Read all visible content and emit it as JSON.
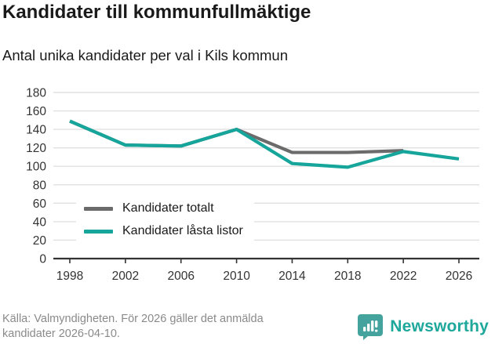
{
  "header": {
    "title": "Kandidater till kommunfullmäktige",
    "subtitle": "Antal unika kandidater per val i Kils kommun"
  },
  "chart_data": {
    "type": "line",
    "categories": [
      "1998",
      "2002",
      "2006",
      "2010",
      "2014",
      "2018",
      "2022",
      "2026"
    ],
    "series": [
      {
        "name": "Kandidater totalt",
        "color": "#6b6b6b",
        "values": [
          149,
          123,
          122,
          140,
          115,
          115,
          117,
          null
        ]
      },
      {
        "name": "Kandidater låsta listor",
        "color": "#16a59b",
        "values": [
          149,
          123,
          122,
          140,
          103,
          99,
          116,
          108
        ]
      }
    ],
    "title": "Kandidater till kommunfullmäktige",
    "xlabel": "",
    "ylabel": "",
    "ylim": [
      0,
      180
    ],
    "ytick_step": 20,
    "grid": true,
    "legend_position": "inside-lower-left"
  },
  "axis": {
    "grid_color": "#e0e0e0",
    "axis_color": "#333333",
    "tick_label_color": "#333333"
  },
  "footer": {
    "source_line1": "Källa: Valmyndigheten. För 2026 gäller det anmälda",
    "source_line2": "kandidater 2026-04-10.",
    "brand": "Newsworthy",
    "brand_color": "#1ea79b",
    "brand_icon_color": "#44a39c"
  }
}
